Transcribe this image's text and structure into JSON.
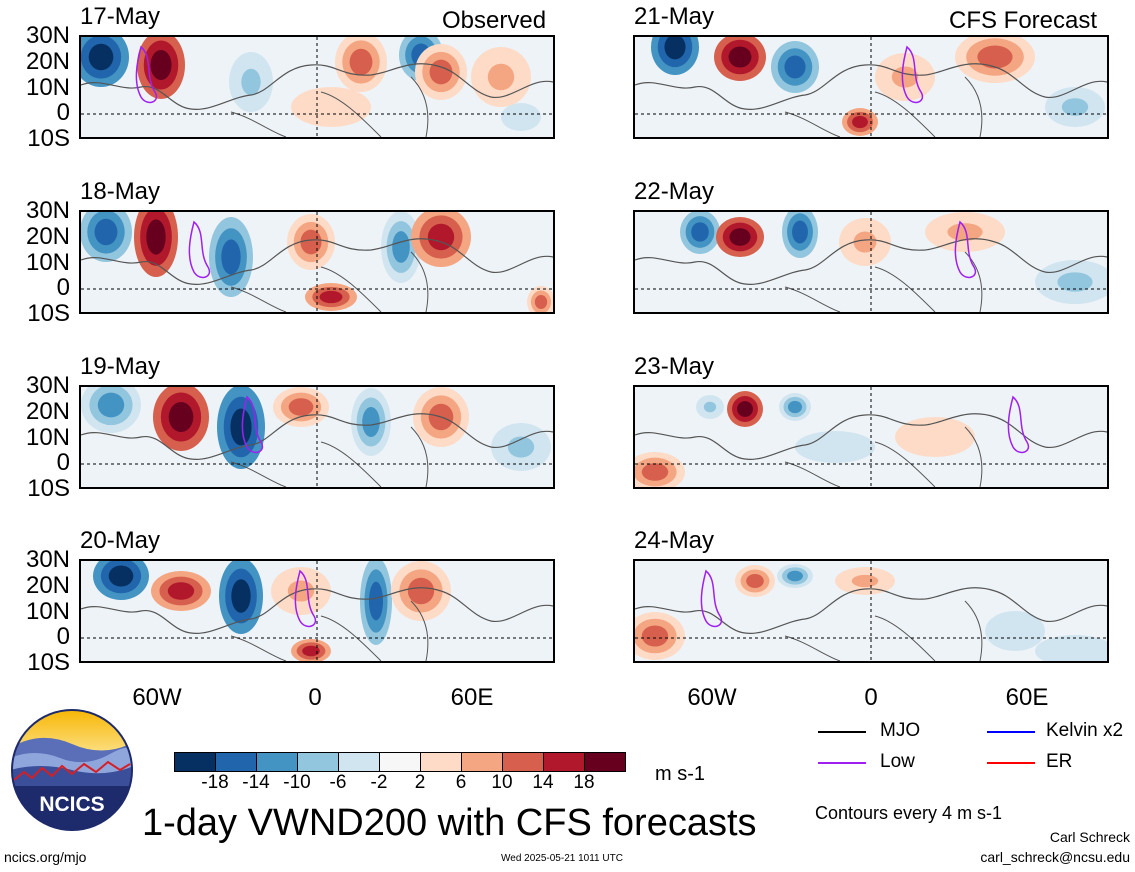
{
  "columns": {
    "left_title": "Observed",
    "right_title": "CFS Forecast"
  },
  "panels": [
    {
      "date": "17-May",
      "column": "observed"
    },
    {
      "date": "18-May",
      "column": "observed"
    },
    {
      "date": "19-May",
      "column": "observed"
    },
    {
      "date": "20-May",
      "column": "observed"
    },
    {
      "date": "21-May",
      "column": "forecast"
    },
    {
      "date": "22-May",
      "column": "forecast"
    },
    {
      "date": "23-May",
      "column": "forecast"
    },
    {
      "date": "24-May",
      "column": "forecast"
    }
  ],
  "axes": {
    "lat_labels": [
      "30N",
      "20N",
      "10N",
      "0",
      "10S"
    ],
    "lon_labels": [
      "60W",
      "0",
      "60E"
    ]
  },
  "colorbar": {
    "labels": [
      "-18",
      "-14",
      "-10",
      "-6",
      "-2",
      "2",
      "6",
      "10",
      "14",
      "18"
    ],
    "colors": [
      "#053061",
      "#2166ac",
      "#4393c3",
      "#92c5de",
      "#d1e5f0",
      "#f7f7f7",
      "#fddbc7",
      "#f4a582",
      "#d6604d",
      "#b2182b",
      "#67001f"
    ],
    "units": "m s-1"
  },
  "legend": {
    "items": [
      {
        "label": "MJO",
        "color": "#000000"
      },
      {
        "label": "Kelvin x2",
        "color": "#0000ff"
      },
      {
        "label": "Low",
        "color": "#a020f0"
      },
      {
        "label": "ER",
        "color": "#ff0000"
      }
    ],
    "note": "Contours every 4 m s-1"
  },
  "title": "1-day VWND200 with CFS forecasts",
  "logo_text": "NCICS",
  "footer": {
    "left": "ncics.org/mjo",
    "center": "Wed 2025-05-21 1011 UTC",
    "right_name": "Carl Schreck",
    "right_email": "carl_schreck@ncsu.edu"
  }
}
